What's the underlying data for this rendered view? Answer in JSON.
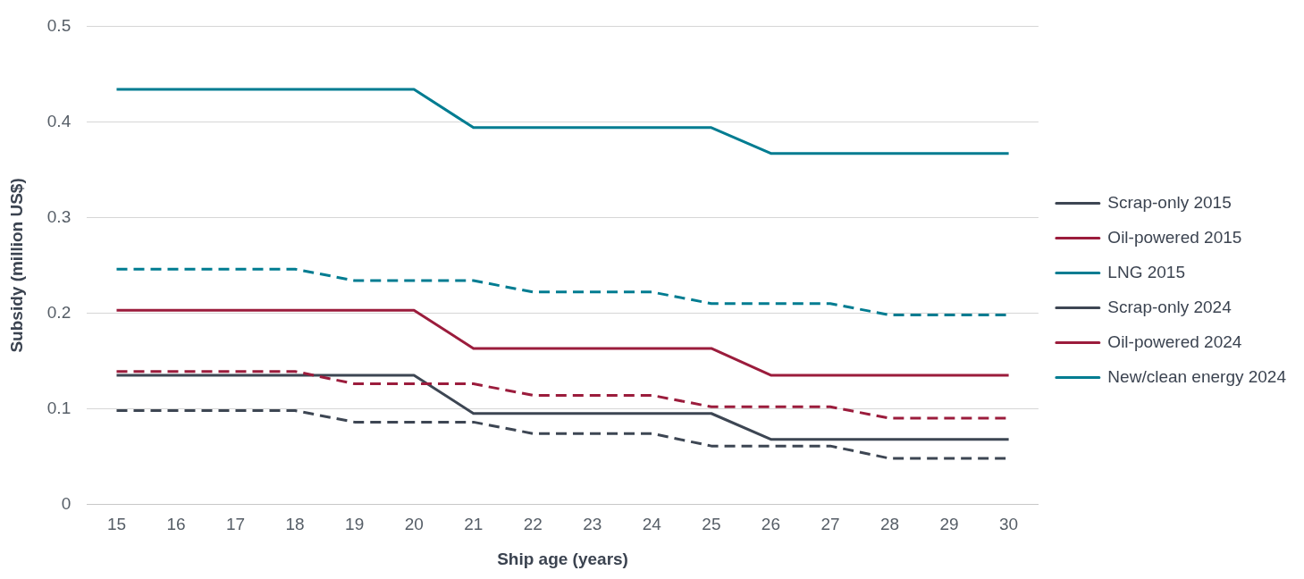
{
  "chart_data": {
    "type": "line",
    "xlabel": "Ship age (years)",
    "ylabel": "Subsidy (million US$)",
    "categories": [
      "15",
      "16",
      "17",
      "18",
      "19",
      "20",
      "21",
      "22",
      "23",
      "24",
      "25",
      "26",
      "27",
      "28",
      "29",
      "30"
    ],
    "ylim": [
      0,
      0.5
    ],
    "yticks": [
      0,
      0.1,
      0.2,
      0.3,
      0.4,
      0.5
    ],
    "grid": "y",
    "legend": "right",
    "marker": "none",
    "series": [
      {
        "name": "Scrap-only 2015",
        "color": "#3d4653",
        "line_style": "dashed",
        "values": [
          0.098,
          0.098,
          0.098,
          0.098,
          0.086,
          0.086,
          0.086,
          0.074,
          0.074,
          0.074,
          0.061,
          0.061,
          0.061,
          0.048,
          0.048,
          0.048
        ]
      },
      {
        "name": "Oil-powered 2015",
        "color": "#9b1c3c",
        "line_style": "dashed",
        "values": [
          0.139,
          0.139,
          0.139,
          0.139,
          0.126,
          0.126,
          0.126,
          0.114,
          0.114,
          0.114,
          0.102,
          0.102,
          0.102,
          0.09,
          0.09,
          0.09
        ]
      },
      {
        "name": "LNG 2015",
        "color": "#007c91",
        "line_style": "dashed",
        "values": [
          0.246,
          0.246,
          0.246,
          0.246,
          0.234,
          0.234,
          0.234,
          0.222,
          0.222,
          0.222,
          0.21,
          0.21,
          0.21,
          0.198,
          0.198,
          0.198
        ]
      },
      {
        "name": "Scrap-only 2024",
        "color": "#3d4653",
        "line_style": "solid",
        "values": [
          0.135,
          0.135,
          0.135,
          0.135,
          0.135,
          0.135,
          0.095,
          0.095,
          0.095,
          0.095,
          0.095,
          0.068,
          0.068,
          0.068,
          0.068,
          0.068
        ]
      },
      {
        "name": "Oil-powered 2024",
        "color": "#9b1c3c",
        "line_style": "solid",
        "values": [
          0.203,
          0.203,
          0.203,
          0.203,
          0.203,
          0.203,
          0.163,
          0.163,
          0.163,
          0.163,
          0.163,
          0.135,
          0.135,
          0.135,
          0.135,
          0.135
        ]
      },
      {
        "name": "New/clean energy 2024",
        "color": "#007c91",
        "line_style": "solid",
        "values": [
          0.434,
          0.434,
          0.434,
          0.434,
          0.434,
          0.434,
          0.394,
          0.394,
          0.394,
          0.394,
          0.394,
          0.367,
          0.367,
          0.367,
          0.367,
          0.367
        ]
      }
    ]
  }
}
